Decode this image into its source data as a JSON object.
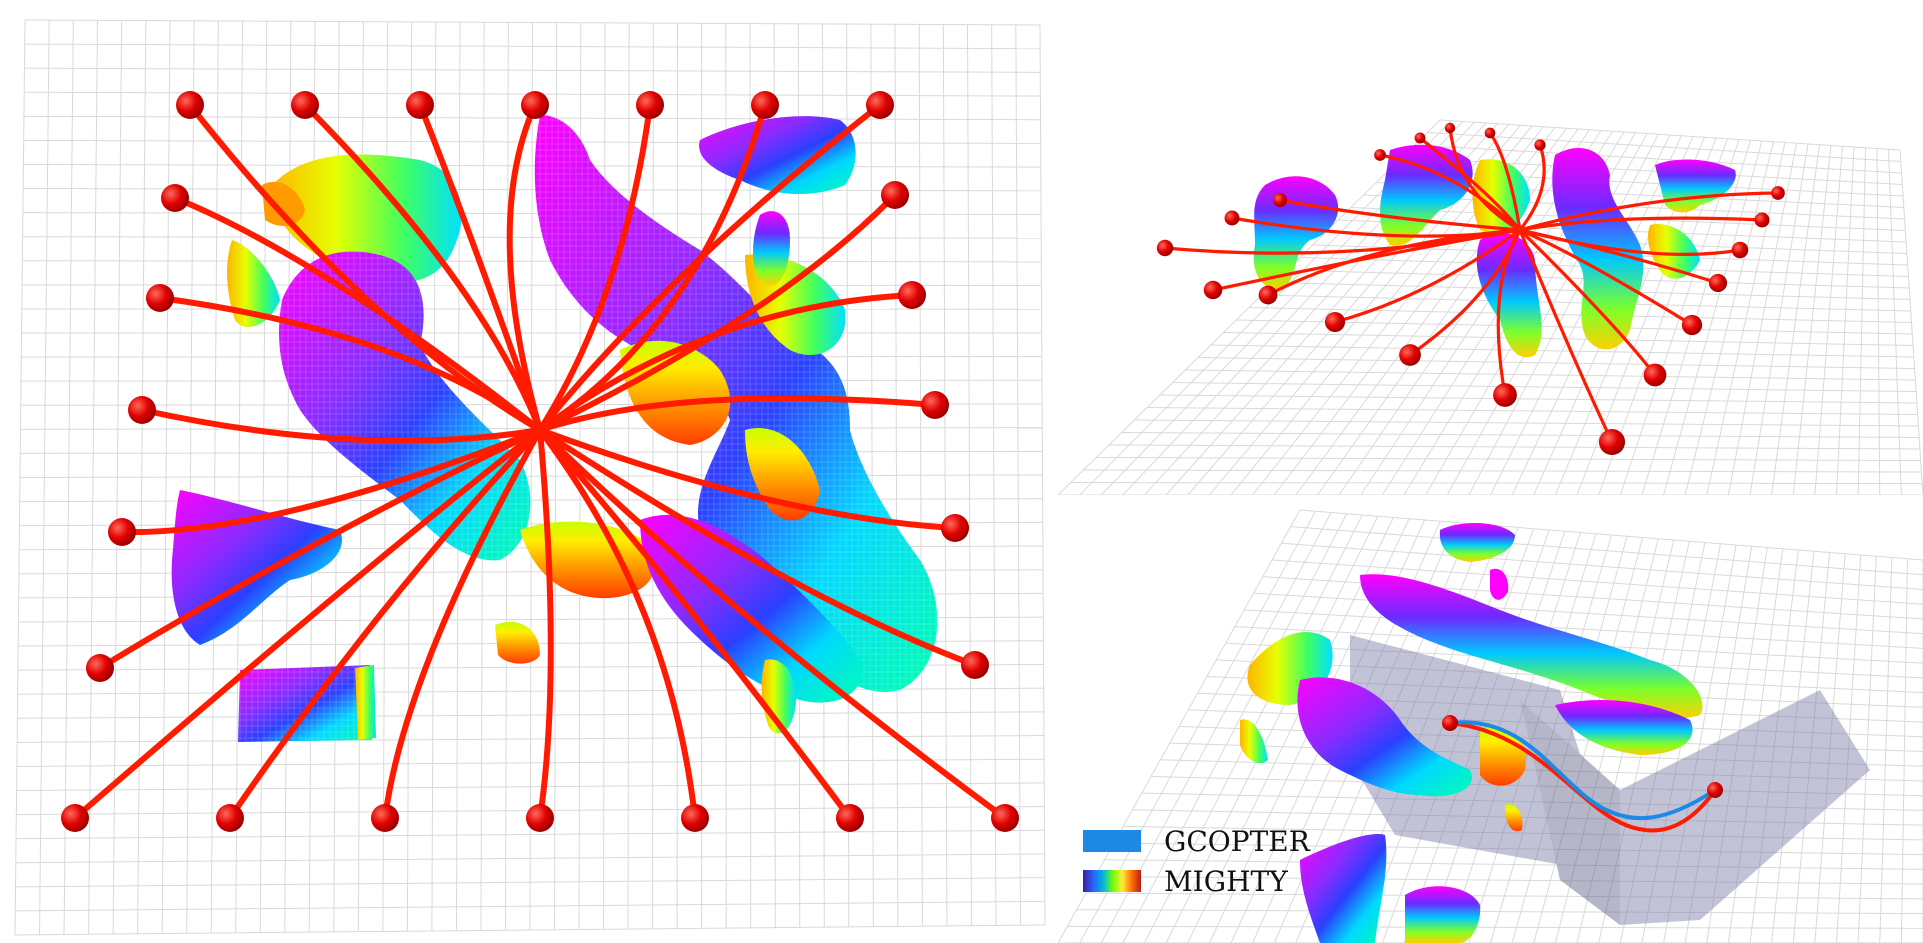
{
  "legend": {
    "items": [
      {
        "label": "GCOPTER",
        "color": "#1e88e5"
      },
      {
        "label": "MIGHTY",
        "gradient": [
          "#3a1ea0",
          "#2962ff",
          "#00bcd4",
          "#76ff03",
          "#ffeb3b",
          "#ff6f00",
          "#b71c1c"
        ]
      }
    ]
  },
  "colors": {
    "trajectory": "#ff1a00",
    "waypoint": "#d90000",
    "obstacle_top": "#ff00ff",
    "obstacle_mid": "#3a2bff",
    "obstacle_low": "#00e5ff",
    "obstacle_base": "#ffd600",
    "grid": "#d9d9d9",
    "corridor": "#7a7aa8"
  }
}
